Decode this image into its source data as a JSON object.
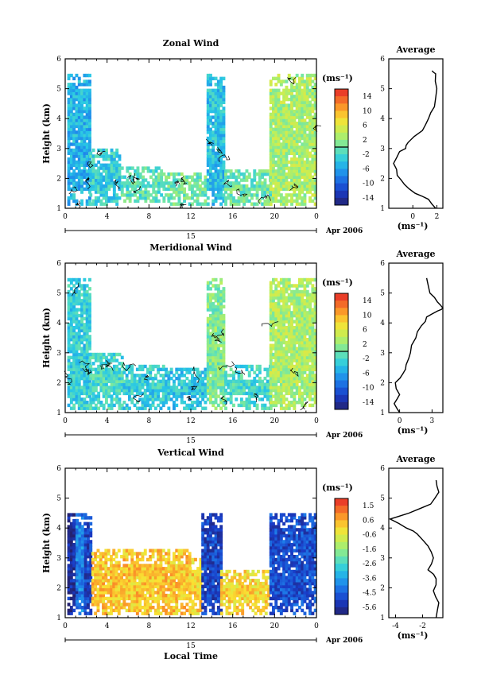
{
  "chart_data": [
    {
      "type": "heatmap",
      "title": "Zonal Wind",
      "ylabel": "Height (km)",
      "ylim": [
        1,
        6
      ],
      "yticks": [
        "1",
        "2",
        "3",
        "4",
        "5",
        "6"
      ],
      "xlim": [
        0,
        24
      ],
      "xticks": [
        "0",
        "4",
        "8",
        "12",
        "16",
        "20",
        "0"
      ],
      "date_label": "15",
      "month_label": "Apr 2006",
      "colorbar": {
        "unit": "(ms⁻¹)",
        "ticks": [
          "14",
          "10",
          "6",
          "2",
          "-2",
          "-6",
          "-10",
          "-14"
        ],
        "range": [
          -16,
          16
        ]
      },
      "contour": "zero line",
      "regions": [
        {
          "t": [
            0.2,
            2.3
          ],
          "h": [
            1.1,
            5.4
          ],
          "v": -5
        },
        {
          "t": [
            2.3,
            5.3
          ],
          "h": [
            1.1,
            3.0
          ],
          "v": -3
        },
        {
          "t": [
            5.3,
            9.5
          ],
          "h": [
            1.2,
            2.4
          ],
          "v": -1
        },
        {
          "t": [
            9.5,
            13.5
          ],
          "h": [
            1.1,
            2.2
          ],
          "v": 0
        },
        {
          "t": [
            13.5,
            15.2
          ],
          "h": [
            1.1,
            5.4
          ],
          "v": -4
        },
        {
          "t": [
            15.2,
            19.5
          ],
          "h": [
            1.1,
            2.3
          ],
          "v": 0
        },
        {
          "t": [
            19.5,
            24
          ],
          "h": [
            1.1,
            5.4
          ],
          "v": 3
        }
      ]
    },
    {
      "type": "line",
      "title": "Average",
      "xlabel": "(ms⁻¹)",
      "xlim": [
        -2,
        2.5
      ],
      "xticks": [
        "0",
        "2"
      ],
      "ylim": [
        1,
        6
      ],
      "yticks": [
        "1",
        "2",
        "3",
        "4",
        "5",
        "6"
      ],
      "series": [
        {
          "x": [
            1.9,
            1.3,
            0.2,
            -0.7,
            -1.3,
            -1.6,
            -1.1,
            -0.6,
            -0.4,
            0.8,
            1.3,
            1.8,
            2.0,
            1.9,
            1.6
          ],
          "y": [
            1.0,
            1.3,
            1.5,
            1.8,
            2.1,
            2.5,
            2.9,
            3.0,
            3.2,
            3.6,
            4.0,
            4.4,
            5.0,
            5.5,
            5.6
          ]
        }
      ]
    },
    {
      "type": "heatmap",
      "title": "Meridional Wind",
      "ylabel": "Height (km)",
      "ylim": [
        1,
        6
      ],
      "yticks": [
        "1",
        "2",
        "3",
        "4",
        "5",
        "6"
      ],
      "xlim": [
        0,
        24
      ],
      "xticks": [
        "0",
        "4",
        "8",
        "12",
        "16",
        "20",
        "0"
      ],
      "date_label": "15",
      "month_label": "Apr 2006",
      "colorbar": {
        "unit": "(ms⁻¹)",
        "ticks": [
          "14",
          "10",
          "6",
          "2",
          "-2",
          "-6",
          "-10",
          "-14"
        ],
        "range": [
          -16,
          16
        ]
      },
      "contour": "zero line",
      "regions": [
        {
          "t": [
            0.2,
            2.3
          ],
          "h": [
            1.1,
            5.4
          ],
          "v": -3
        },
        {
          "t": [
            2.3,
            5.5
          ],
          "h": [
            1.1,
            3.0
          ],
          "v": -2
        },
        {
          "t": [
            5.5,
            9.5
          ],
          "h": [
            1.1,
            2.6
          ],
          "v": -3
        },
        {
          "t": [
            9.5,
            13.5
          ],
          "h": [
            1.1,
            2.5
          ],
          "v": -4
        },
        {
          "t": [
            13.5,
            15.2
          ],
          "h": [
            1.1,
            5.4
          ],
          "v": 1
        },
        {
          "t": [
            15.2,
            19.5
          ],
          "h": [
            1.1,
            2.6
          ],
          "v": -2
        },
        {
          "t": [
            19.5,
            24
          ],
          "h": [
            1.1,
            5.4
          ],
          "v": 3
        }
      ]
    },
    {
      "type": "line",
      "title": "Average",
      "xlabel": "(ms⁻¹)",
      "xlim": [
        -1,
        4
      ],
      "xticks": [
        "0",
        "3"
      ],
      "ylim": [
        1,
        6
      ],
      "yticks": [
        "1",
        "2",
        "3",
        "4",
        "5",
        "6"
      ],
      "series": [
        {
          "x": [
            0.0,
            -0.5,
            0.0,
            -0.4,
            0.3,
            0.6,
            1.0,
            1.5,
            2.0,
            2.5,
            3.5,
            4.0,
            3.5,
            2.8,
            2.5
          ],
          "y": [
            1.0,
            1.3,
            1.6,
            2.0,
            2.3,
            2.6,
            3.0,
            3.5,
            3.9,
            4.2,
            4.4,
            4.5,
            4.7,
            5.0,
            5.5
          ]
        }
      ]
    },
    {
      "type": "heatmap",
      "title": "Vertical Wind",
      "ylabel": "Height (km)",
      "xlabel": "Local Time",
      "ylim": [
        1,
        6
      ],
      "yticks": [
        "1",
        "2",
        "3",
        "4",
        "5",
        "6"
      ],
      "xlim": [
        0,
        24
      ],
      "xticks": [
        "0",
        "4",
        "8",
        "12",
        "16",
        "20",
        "0"
      ],
      "date_label": "15",
      "month_label": "Apr 2006",
      "colorbar": {
        "unit": "(ms⁻¹)",
        "ticks": [
          "1.5",
          "0.6",
          "-0.6",
          "-1.6",
          "-2.6",
          "-3.6",
          "-4.5",
          "-5.6"
        ],
        "range": [
          -6,
          2
        ]
      },
      "regions": [
        {
          "t": [
            0.2,
            1.0
          ],
          "h": [
            1.1,
            4.5
          ],
          "v": -5.5
        },
        {
          "t": [
            1.0,
            1.8
          ],
          "h": [
            1.1,
            4.5
          ],
          "v": -4
        },
        {
          "t": [
            1.8,
            2.5
          ],
          "h": [
            1.1,
            4.5
          ],
          "v": -5
        },
        {
          "t": [
            2.5,
            11.8
          ],
          "h": [
            1.1,
            3.3
          ],
          "v": 0.2
        },
        {
          "t": [
            11.8,
            13.0
          ],
          "h": [
            1.1,
            3.0
          ],
          "v": 0
        },
        {
          "t": [
            13.0,
            14.8
          ],
          "h": [
            1.1,
            4.5
          ],
          "v": -5
        },
        {
          "t": [
            14.8,
            19.5
          ],
          "h": [
            1.1,
            2.6
          ],
          "v": 0
        },
        {
          "t": [
            19.5,
            24
          ],
          "h": [
            1.1,
            4.5
          ],
          "v": -4.8
        }
      ]
    },
    {
      "type": "line",
      "title": "Average",
      "xlabel": "(ms⁻¹)",
      "xlim": [
        -4.5,
        -0.5
      ],
      "xticks": [
        "-4",
        "-2"
      ],
      "ylim": [
        1,
        6
      ],
      "yticks": [
        "1",
        "2",
        "3",
        "4",
        "5",
        "6"
      ],
      "series": [
        {
          "x": [
            -1.0,
            -0.8,
            -1.2,
            -1.0,
            -1.6,
            -1.2,
            -1.6,
            -2.4,
            -3.2,
            -4.4,
            -3.0,
            -1.4,
            -0.8,
            -1.0
          ],
          "y": [
            1.0,
            1.5,
            1.9,
            2.3,
            2.6,
            3.0,
            3.4,
            3.8,
            4.0,
            4.3,
            4.5,
            4.8,
            5.2,
            5.6
          ]
        }
      ]
    }
  ]
}
